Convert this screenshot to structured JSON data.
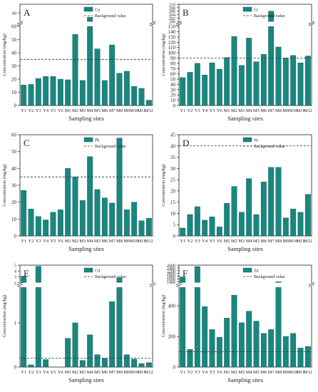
{
  "figure": {
    "bar_color": "#18877f",
    "bar_stroke": "#0d4f4a"
  },
  "chart_data": [
    {
      "type": "bar",
      "panel_letter": "A",
      "legend_series": "Cu",
      "legend_ref": "Background value",
      "xlabel": "Sampling sites",
      "ylabel": "Concentration (mg/kg)",
      "categories": [
        "Y1",
        "Y2",
        "Y3",
        "Y4",
        "Y5",
        "Y6",
        "M1",
        "M2",
        "M3",
        "M4",
        "M5",
        "M6",
        "M7",
        "M8",
        "M9",
        "M10",
        "M11",
        "M12"
      ],
      "values": [
        15.5,
        16,
        20.5,
        22,
        22,
        20,
        19.5,
        54,
        19,
        79,
        43,
        19,
        46,
        24.5,
        26,
        14.5,
        13,
        4
      ],
      "reference": 35,
      "ylim": [
        0,
        60
      ],
      "yticks": [
        0,
        10,
        20,
        30,
        40,
        50,
        60
      ],
      "axis_break": true,
      "break_after": 58,
      "break_ticks": [
        80
      ],
      "upper_ylim": [
        78,
        82
      ]
    },
    {
      "type": "bar",
      "panel_letter": "B",
      "legend_series": "Cr",
      "legend_ref": "Background value",
      "xlabel": "Sampling sites",
      "ylabel": "Concentration (mg/kg)",
      "categories": [
        "Y1",
        "Y2",
        "Y3",
        "Y4",
        "Y5",
        "Y6",
        "M1",
        "M2",
        "M3",
        "M4",
        "M5",
        "M6",
        "M7",
        "M8",
        "M9",
        "M10",
        "M11",
        "M12"
      ],
      "values": [
        53,
        63,
        80,
        58,
        81,
        69,
        91,
        131,
        76,
        128,
        83,
        97,
        206,
        111,
        90,
        95,
        81,
        94
      ],
      "reference": 90,
      "ylim": [
        0,
        150
      ],
      "yticks": [
        0,
        10,
        20,
        30,
        40,
        50,
        60,
        70,
        80,
        90,
        100,
        110,
        120,
        130,
        140,
        150
      ],
      "axis_break": true,
      "break_after": 145,
      "break_ticks": [
        200,
        202,
        204,
        206,
        208,
        210
      ],
      "upper_ylim": [
        200,
        210
      ]
    },
    {
      "type": "bar",
      "panel_letter": "C",
      "legend_series": "Pb",
      "legend_ref": "Background value",
      "xlabel": "Sampling sites",
      "ylabel": "Concentration (mg/kg)",
      "categories": [
        "Y1",
        "Y2",
        "Y3",
        "Y4",
        "Y5",
        "Y6",
        "M1",
        "M2",
        "M3",
        "M4",
        "M5",
        "M6",
        "M7",
        "M8",
        "M9",
        "M10",
        "M11",
        "M12"
      ],
      "values": [
        27,
        16,
        11.5,
        9.5,
        14,
        15.5,
        40,
        35,
        21,
        47,
        27.5,
        22.5,
        19.5,
        58,
        15.5,
        20,
        9,
        10.5
      ],
      "reference": 35,
      "ylim": [
        0,
        60
      ],
      "yticks": [
        0,
        10,
        20,
        30,
        40,
        50,
        60
      ],
      "axis_break": false
    },
    {
      "type": "bar",
      "panel_letter": "D",
      "legend_series": "Ni",
      "legend_ref": "Background value",
      "xlabel": "Sampling sites",
      "ylabel": "Concentration (mg/kg)",
      "categories": [
        "Y1",
        "Y2",
        "Y3",
        "Y4",
        "Y5",
        "Y6",
        "M1",
        "M2",
        "M3",
        "M4",
        "M5",
        "M6",
        "M7",
        "M8",
        "M9",
        "M10",
        "M11",
        "M12"
      ],
      "values": [
        3.5,
        9.5,
        13,
        7,
        8.5,
        4,
        14.5,
        22,
        10.5,
        25.5,
        9.5,
        24,
        30.5,
        30.5,
        8,
        12,
        10.5,
        18.5
      ],
      "reference": 40,
      "ylim": [
        0,
        45
      ],
      "yticks": [
        0,
        5,
        10,
        15,
        20,
        25,
        30,
        35,
        40,
        45
      ],
      "axis_break": false
    },
    {
      "type": "bar",
      "panel_letter": "E",
      "legend_series": "Cd",
      "legend_ref": "Background value",
      "xlabel": "Sampling sites",
      "ylabel": "Concentration (mg/kg)",
      "categories": [
        "Y1",
        "Y2",
        "Y3",
        "Y4",
        "Y5",
        "Y6",
        "M1",
        "M2",
        "M3",
        "M4",
        "M5",
        "M6",
        "M7",
        "M8",
        "M9",
        "M10",
        "M11",
        "M12"
      ],
      "values": [
        3.1,
        0.05,
        4.8,
        0.17,
        0,
        0,
        0.65,
        1.0,
        0.15,
        0.73,
        0.28,
        0.2,
        1.48,
        2.8,
        0.28,
        0.18,
        0.08,
        0.1
      ],
      "reference": 0.2,
      "ylim": [
        0,
        1.8
      ],
      "yticks": [
        0,
        1
      ],
      "axis_break": true,
      "break_after": 1.8,
      "break_ticks": [
        2,
        3,
        4,
        5
      ],
      "upper_ylim": [
        2,
        5
      ]
    },
    {
      "type": "bar",
      "panel_letter": "F",
      "legend_series": "Zn",
      "legend_ref": "Background value",
      "xlabel": "Sampling sites",
      "ylabel": "Concentration (mg/kg)",
      "categories": [
        "Y1",
        "Y2",
        "Y3",
        "Y4",
        "Y5",
        "Y6",
        "M1",
        "M2",
        "M3",
        "M4",
        "M5",
        "M6",
        "M7",
        "M8",
        "M9",
        "M10",
        "M11",
        "M12"
      ],
      "values": [
        1750,
        115,
        2500,
        395,
        245,
        195,
        320,
        470,
        290,
        365,
        300,
        220,
        245,
        1400,
        200,
        220,
        125,
        135
      ],
      "reference": 100,
      "ylim": [
        0,
        520
      ],
      "yticks": [
        0,
        200,
        400
      ],
      "axis_break": true,
      "break_after": 520,
      "break_ticks": [
        1400,
        1600,
        1800,
        2000,
        2200,
        2400,
        2600
      ],
      "upper_ylim": [
        1350,
        2600
      ]
    }
  ]
}
